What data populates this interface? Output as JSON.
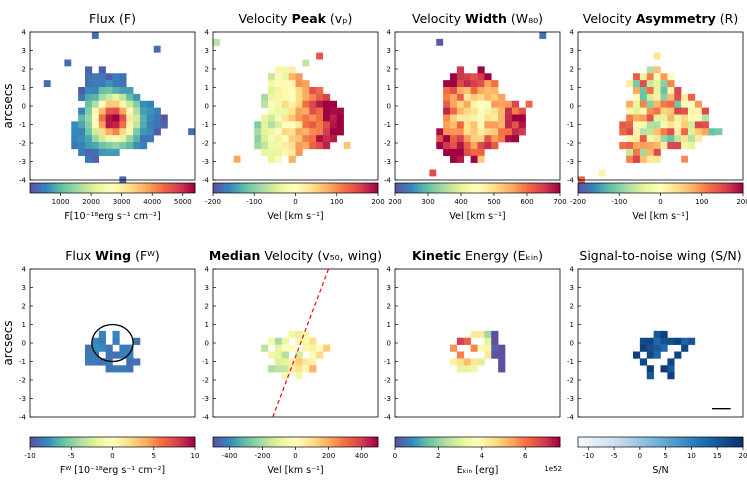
{
  "figure": {
    "y_axis_label": "arcsecs",
    "axis_ticks": [
      "4",
      "3",
      "2",
      "1",
      "0",
      "-1",
      "-2",
      "-3",
      "-4"
    ],
    "colors": {
      "spectral": [
        "#5e4fa2",
        "#3288bd",
        "#66c2a5",
        "#abdda4",
        "#e6f598",
        "#ffffbf",
        "#fee08b",
        "#fdae61",
        "#f46d43",
        "#d53e4f",
        "#9e0142"
      ],
      "blues": [
        "#f7fbff",
        "#c6dbef",
        "#6baed6",
        "#2171b5",
        "#08306b"
      ],
      "dashed_line": "#e41a1c"
    }
  },
  "panels": [
    {
      "title_pre": "Flux (F)",
      "title_bold": "",
      "title_post": "",
      "cb_label": "F[10⁻¹⁸erg s⁻¹ cm⁻²]",
      "cb_ticks": [
        "1000",
        "2000",
        "3000",
        "4000",
        "5000"
      ],
      "cb_exponent": ""
    },
    {
      "title_pre": "Velocity ",
      "title_bold": "Peak",
      "title_post": " (vₚ)",
      "cb_label": "Vel [km s⁻¹]",
      "cb_ticks": [
        "-200",
        "-100",
        "0",
        "100",
        "200"
      ],
      "cb_exponent": ""
    },
    {
      "title_pre": "Velocity ",
      "title_bold": "Width",
      "title_post": " (W₈₀)",
      "cb_label": "Vel [km s⁻¹]",
      "cb_ticks": [
        "200",
        "300",
        "400",
        "500",
        "600",
        "700"
      ],
      "cb_exponent": ""
    },
    {
      "title_pre": "Velocity ",
      "title_bold": "Asymmetry",
      "title_post": " (R)",
      "cb_label": "Vel [km s⁻¹]",
      "cb_ticks": [
        "-200",
        "-100",
        "0",
        "100",
        "200"
      ],
      "cb_exponent": ""
    },
    {
      "title_pre": "Flux ",
      "title_bold": "Wing",
      "title_post": " (Fᵂ)",
      "cb_label": "Fᵂ [10⁻¹⁸erg s⁻¹ cm⁻²]",
      "cb_ticks": [
        "-10",
        "-5",
        "0",
        "5",
        "10"
      ],
      "cb_exponent": ""
    },
    {
      "title_pre": "",
      "title_bold": "Median",
      "title_post": " Velocity (v₅₀, wing)",
      "cb_label": "Vel [km s⁻¹]",
      "cb_ticks": [
        "-400",
        "-200",
        "0",
        "200",
        "400"
      ],
      "cb_exponent": ""
    },
    {
      "title_pre": "",
      "title_bold": "Kinetic",
      "title_post": " Energy (Eₖᵢₙ)",
      "cb_label": "Eₖᵢₙ [erg]",
      "cb_ticks": [
        "0",
        "2",
        "4",
        "6"
      ],
      "cb_exponent": "1e52"
    },
    {
      "title_pre": "Signal-to-noise wing (S/N)",
      "title_bold": "",
      "title_post": "",
      "cb_label": "S/N",
      "cb_ticks": [
        "-10",
        "-5",
        "0",
        "5",
        "10",
        "15",
        "20"
      ],
      "cb_exponent": ""
    }
  ],
  "chart_data": [
    {
      "type": "heatmap",
      "title": "Flux (F)",
      "xlabel": "",
      "ylabel": "arcsecs",
      "xlim": [
        -4,
        4
      ],
      "ylim": [
        -4,
        4
      ],
      "colormap": "Spectral_r",
      "color_range": [
        0,
        5400
      ],
      "colorbar_label": "F[10^-18 erg s^-1 cm^-2]",
      "peak": {
        "x": -0.1,
        "y": -0.2,
        "value": 5200
      },
      "description_values": {
        "emission_center_arcsec": [
          -0.1,
          -0.2
        ]
      }
    },
    {
      "type": "heatmap",
      "title": "Velocity Peak (v_p)",
      "ylabel": "",
      "xlim": [
        -4,
        4
      ],
      "ylim": [
        -4,
        4
      ],
      "colormap": "Spectral_r",
      "color_range": [
        -200,
        200
      ],
      "colorbar_label": "Vel [km s^-1]",
      "gradient": {
        "west_value": -80,
        "east_value": 190
      }
    },
    {
      "type": "heatmap",
      "title": "Velocity Width (W_80)",
      "ylabel": "",
      "xlim": [
        -4,
        4
      ],
      "ylim": [
        -4,
        4
      ],
      "colormap": "Spectral_r",
      "color_range": [
        200,
        700
      ],
      "colorbar_label": "Vel [km s^-1]",
      "center_value": 450,
      "edge_value": 690
    },
    {
      "type": "heatmap",
      "title": "Velocity Asymmetry (R)",
      "ylabel": "",
      "xlim": [
        -4,
        4
      ],
      "ylim": [
        -4,
        4
      ],
      "colormap": "Spectral_r",
      "color_range": [
        -200,
        200
      ],
      "colorbar_label": "Vel [km s^-1]"
    },
    {
      "type": "heatmap",
      "title": "Flux Wing (F_w)",
      "ylabel": "arcsecs",
      "xlim": [
        -4,
        4
      ],
      "ylim": [
        -4,
        4
      ],
      "colormap": "Spectral_r",
      "color_range": [
        -10,
        10
      ],
      "colorbar_label": "F_w [10^-18 erg s^-1 cm^-2]",
      "aperture_circle": {
        "x": 0,
        "y": 0,
        "radius_arcsec": 1
      }
    },
    {
      "type": "heatmap",
      "title": "Median Velocity (v_50,wing)",
      "ylabel": "",
      "xlim": [
        -4,
        4
      ],
      "ylim": [
        -4,
        4
      ],
      "colormap": "Spectral_r",
      "color_range": [
        -500,
        500
      ],
      "colorbar_label": "Vel [km s^-1]",
      "dashed_line": {
        "x": [
          -1.1,
          1.6
        ],
        "y": [
          -4,
          4
        ]
      }
    },
    {
      "type": "heatmap",
      "title": "Kinetic Energy (E_kin)",
      "ylabel": "",
      "xlim": [
        -4,
        4
      ],
      "ylim": [
        -4,
        4
      ],
      "colormap": "Spectral_r",
      "color_range": [
        0,
        7.6e+52
      ],
      "colorbar_label": "E_kin [erg]",
      "colorbar_exponent": "1e52"
    },
    {
      "type": "heatmap",
      "title": "Signal-to-noise wing (S/N)",
      "ylabel": "",
      "xlim": [
        -4,
        4
      ],
      "ylim": [
        -4,
        4
      ],
      "colormap": "Blues",
      "color_range": [
        -12,
        20
      ],
      "colorbar_label": "S/N",
      "scale_bar": {
        "x": [
          2.5,
          3.4
        ],
        "y": -3.55
      }
    }
  ]
}
